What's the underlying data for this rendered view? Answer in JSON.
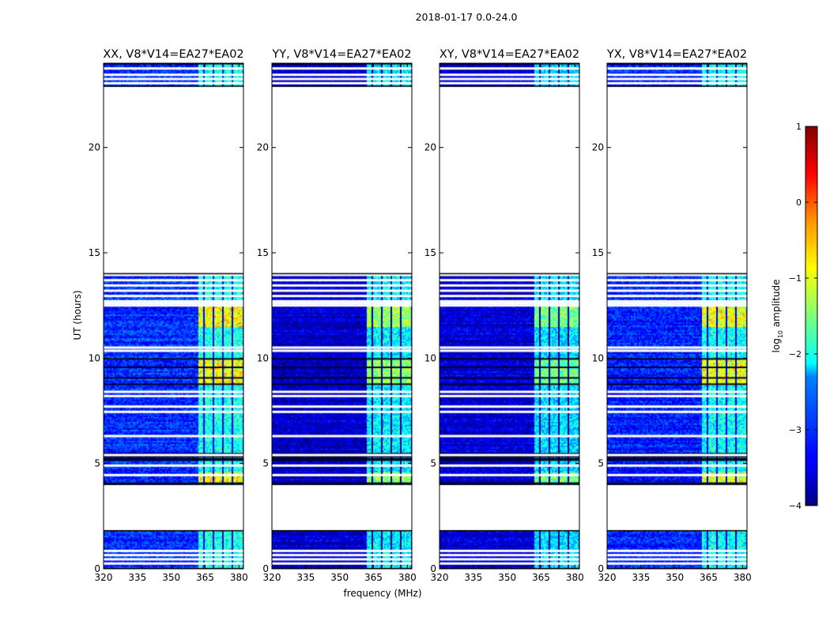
{
  "suptitle": "2018-01-17 0.0-24.0",
  "xlabel": "frequency (MHz)",
  "ylabel": "UT (hours)",
  "colorbar": {
    "label": "log",
    "label_sub": "10",
    "label_rest": " amplitude",
    "range": [
      -4,
      1
    ],
    "ticks": [
      {
        "value": 1,
        "label": "1"
      },
      {
        "value": 0,
        "label": "0"
      },
      {
        "value": -1,
        "label": "−1"
      },
      {
        "value": -2,
        "label": "−2"
      },
      {
        "value": -3,
        "label": "−3"
      },
      {
        "value": -4,
        "label": "−4"
      }
    ],
    "colormap": "jet"
  },
  "chart_data": [
    {
      "type": "heatmap",
      "title": "XX, V8*V14=EA27*EA02",
      "variant": "xx",
      "xlim": [
        320,
        382
      ],
      "ylim": [
        0,
        24
      ],
      "xticks": [
        320,
        335,
        350,
        365,
        380
      ],
      "yticks": [
        0,
        5,
        10,
        15,
        20
      ],
      "xlabel": "",
      "ylabel": "UT (hours)"
    },
    {
      "type": "heatmap",
      "title": "YY, V8*V14=EA27*EA02",
      "variant": "yy",
      "xlim": [
        320,
        382
      ],
      "ylim": [
        0,
        24
      ],
      "xticks": [
        320,
        335,
        350,
        365,
        380
      ],
      "yticks": [
        0,
        5,
        10,
        15,
        20
      ],
      "xlabel": "frequency (MHz)",
      "ylabel": ""
    },
    {
      "type": "heatmap",
      "title": "XY, V8*V14=EA27*EA02",
      "variant": "xy",
      "xlim": [
        320,
        382
      ],
      "ylim": [
        0,
        24
      ],
      "xticks": [
        320,
        335,
        350,
        365,
        380
      ],
      "yticks": [
        0,
        5,
        10,
        15,
        20
      ],
      "xlabel": "",
      "ylabel": ""
    },
    {
      "type": "heatmap",
      "title": "YX, V8*V14=EA27*EA02",
      "variant": "yx",
      "xlim": [
        320,
        382
      ],
      "ylim": [
        0,
        24
      ],
      "xticks": [
        320,
        335,
        350,
        365,
        380
      ],
      "yticks": [
        0,
        5,
        10,
        15,
        20
      ],
      "xlabel": "",
      "ylabel": ""
    }
  ],
  "data_coverage": {
    "time_segments_hours": [
      [
        0.0,
        1.8
      ],
      [
        4.0,
        14.0
      ],
      [
        22.9,
        24.0
      ]
    ],
    "blank_rows_hours": [
      0.25,
      0.45,
      0.65,
      0.85,
      4.45,
      4.9,
      5.4,
      6.3,
      7.45,
      7.7,
      8.2,
      8.4,
      10.35,
      10.5,
      12.5,
      12.6,
      12.7,
      12.95,
      13.2,
      13.45,
      13.7,
      13.95,
      23.05,
      23.25,
      23.45,
      23.75
    ],
    "dark_rows_hours": [
      4.1,
      5.2,
      5.35,
      5.5,
      5.25,
      10.0,
      9.6,
      9.1,
      8.8
    ],
    "bright_band_mhz": [
      362,
      381
    ]
  }
}
